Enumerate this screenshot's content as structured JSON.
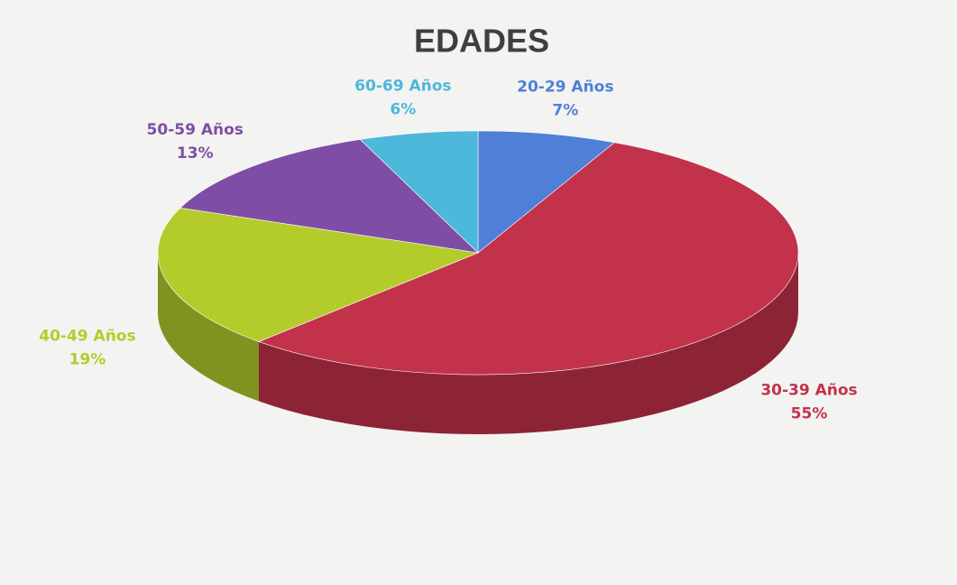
{
  "chart_data": {
    "type": "pie",
    "title": "EDADES",
    "categories": [
      "20-29 Años",
      "30-39 Años",
      "40-49 Años",
      "50-59 Años",
      "60-69 Años"
    ],
    "values": [
      7,
      55,
      19,
      13,
      6
    ],
    "value_labels": [
      "7%",
      "55%",
      "19%",
      "13%",
      "6%"
    ],
    "colors": [
      "#4f7fd6",
      "#c2324b",
      "#b4cb2c",
      "#7e4ea6",
      "#4eb7dc"
    ]
  }
}
